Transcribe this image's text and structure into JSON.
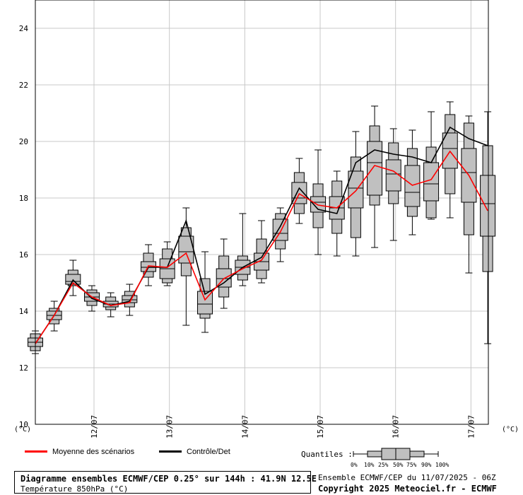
{
  "chart_data": {
    "type": "box",
    "y_unit_left": "(°C)",
    "y_unit_right": "(°C)",
    "ylim": [
      10,
      24.5
    ],
    "yticks": [
      10,
      12,
      14,
      16,
      18,
      20,
      22,
      24
    ],
    "x_date_labels": [
      "12/07",
      "13/07",
      "14/07",
      "15/07",
      "16/07",
      "17/07"
    ],
    "grid": true,
    "series": [
      {
        "name": "Moyenne des scénarios",
        "color": "#ff0000"
      },
      {
        "name": "Contrôle/Det",
        "color": "#000000"
      }
    ],
    "boxes": [
      {
        "min": 12.5,
        "p10": 12.6,
        "p25": 12.75,
        "p50": 12.9,
        "p75": 13.05,
        "p90": 13.2,
        "max": 13.3,
        "mean": 12.85,
        "det": 12.85
      },
      {
        "min": 13.3,
        "p10": 13.55,
        "p25": 13.7,
        "p50": 13.85,
        "p75": 14.0,
        "p90": 14.1,
        "max": 14.35,
        "mean": 13.85,
        "det": 13.85
      },
      {
        "min": 14.55,
        "p10": 14.9,
        "p25": 14.95,
        "p50": 15.05,
        "p75": 15.3,
        "p90": 15.45,
        "max": 15.8,
        "mean": 15.0,
        "det": 15.1
      },
      {
        "min": 14.0,
        "p10": 14.2,
        "p25": 14.35,
        "p50": 14.5,
        "p75": 14.65,
        "p90": 14.75,
        "max": 14.9,
        "mean": 14.5,
        "det": 14.45
      },
      {
        "min": 13.8,
        "p10": 14.05,
        "p25": 14.15,
        "p50": 14.25,
        "p75": 14.35,
        "p90": 14.5,
        "max": 14.65,
        "mean": 14.2,
        "det": 14.2
      },
      {
        "min": 13.85,
        "p10": 14.15,
        "p25": 14.3,
        "p50": 14.4,
        "p75": 14.55,
        "p90": 14.7,
        "max": 14.95,
        "mean": 14.3,
        "det": 14.35
      },
      {
        "min": 14.9,
        "p10": 15.2,
        "p25": 15.4,
        "p50": 15.55,
        "p75": 15.75,
        "p90": 16.05,
        "max": 16.35,
        "mean": 15.6,
        "det": 15.55
      },
      {
        "min": 14.9,
        "p10": 15.0,
        "p25": 15.15,
        "p50": 15.5,
        "p75": 15.85,
        "p90": 16.2,
        "max": 16.45,
        "mean": 15.55,
        "det": 15.55
      },
      {
        "min": 13.5,
        "p10": 15.25,
        "p25": 15.7,
        "p50": 16.1,
        "p75": 16.65,
        "p90": 16.95,
        "max": 17.65,
        "mean": 16.05,
        "det": 17.2
      },
      {
        "min": 13.25,
        "p10": 13.75,
        "p25": 13.9,
        "p50": 14.25,
        "p75": 14.7,
        "p90": 15.15,
        "max": 16.1,
        "mean": 14.4,
        "det": 14.6
      },
      {
        "min": 14.1,
        "p10": 14.5,
        "p25": 14.85,
        "p50": 15.15,
        "p75": 15.5,
        "p90": 15.95,
        "max": 16.55,
        "mean": 15.15,
        "det": 15.0
      },
      {
        "min": 14.9,
        "p10": 15.1,
        "p25": 15.3,
        "p50": 15.55,
        "p75": 15.8,
        "p90": 15.95,
        "max": 17.45,
        "mean": 15.5,
        "det": 15.55
      },
      {
        "min": 15.0,
        "p10": 15.15,
        "p25": 15.45,
        "p50": 15.75,
        "p75": 16.05,
        "p90": 16.55,
        "max": 17.2,
        "mean": 15.8,
        "det": 15.9
      },
      {
        "min": 15.75,
        "p10": 16.2,
        "p25": 16.5,
        "p50": 16.75,
        "p75": 17.25,
        "p90": 17.45,
        "max": 17.65,
        "mean": 16.8,
        "det": 17.0
      },
      {
        "min": 17.1,
        "p10": 17.45,
        "p25": 17.8,
        "p50": 18.0,
        "p75": 18.55,
        "p90": 18.9,
        "max": 19.4,
        "mean": 18.15,
        "det": 18.35
      },
      {
        "min": 16.0,
        "p10": 16.95,
        "p25": 17.5,
        "p50": 17.85,
        "p75": 18.05,
        "p90": 18.5,
        "max": 19.7,
        "mean": 17.75,
        "det": 17.6
      },
      {
        "min": 15.95,
        "p10": 16.75,
        "p25": 17.25,
        "p50": 17.65,
        "p75": 18.05,
        "p90": 18.6,
        "max": 18.95,
        "mean": 17.65,
        "det": 17.45
      },
      {
        "min": 15.95,
        "p10": 16.6,
        "p25": 17.65,
        "p50": 18.35,
        "p75": 18.95,
        "p90": 19.45,
        "max": 20.35,
        "mean": 18.25,
        "det": 19.25
      },
      {
        "min": 16.25,
        "p10": 17.75,
        "p25": 18.1,
        "p50": 19.25,
        "p75": 20.0,
        "p90": 20.55,
        "max": 21.25,
        "mean": 19.15,
        "det": 19.7
      },
      {
        "min": 16.5,
        "p10": 17.8,
        "p25": 18.25,
        "p50": 18.85,
        "p75": 19.35,
        "p90": 19.95,
        "max": 20.45,
        "mean": 18.95,
        "det": 19.55
      },
      {
        "min": 16.7,
        "p10": 17.35,
        "p25": 17.7,
        "p50": 18.2,
        "p75": 19.15,
        "p90": 19.75,
        "max": 20.4,
        "mean": 18.45,
        "det": 19.45
      },
      {
        "min": 17.25,
        "p10": 17.3,
        "p25": 17.9,
        "p50": 18.5,
        "p75": 19.25,
        "p90": 19.8,
        "max": 21.05,
        "mean": 18.65,
        "det": 19.25
      },
      {
        "min": 17.3,
        "p10": 18.15,
        "p25": 19.05,
        "p50": 19.75,
        "p75": 20.3,
        "p90": 20.95,
        "max": 21.4,
        "mean": 19.65,
        "det": 20.5
      },
      {
        "min": 15.35,
        "p10": 16.7,
        "p25": 17.85,
        "p50": 18.9,
        "p75": 19.75,
        "p90": 20.65,
        "max": 20.9,
        "mean": 18.8,
        "det": 20.1
      },
      {
        "min": 12.85,
        "p10": 15.4,
        "p25": 16.65,
        "p50": 17.8,
        "p75": 18.8,
        "p90": 19.85,
        "max": 21.05,
        "mean": 17.55,
        "det": 19.85
      }
    ]
  },
  "legend": {
    "mean_label": "Moyenne des scénarios",
    "det_label": "Contrôle/Det",
    "mean_color": "#ff0000",
    "det_color": "#000000"
  },
  "quantiles": {
    "label": "Quantiles :",
    "labels": [
      "0%",
      "10%",
      "25%",
      "50%",
      "75%",
      "90%",
      "100%"
    ]
  },
  "footer": {
    "title": "Diagramme ensembles ECMWF/CEP 0.25° sur 144h : 41.9N 12.5E",
    "subtitle": "Température 850hPa (°C)",
    "run_info": "Ensemble ECMWF/CEP du 11/07/2025 - 06Z",
    "copyright": "Copyright 2025 Meteociel.fr - ECMWF"
  },
  "colors": {
    "box_fill": "#c0c0c0",
    "grid": "#c8c8c8",
    "frame": "#000000"
  }
}
